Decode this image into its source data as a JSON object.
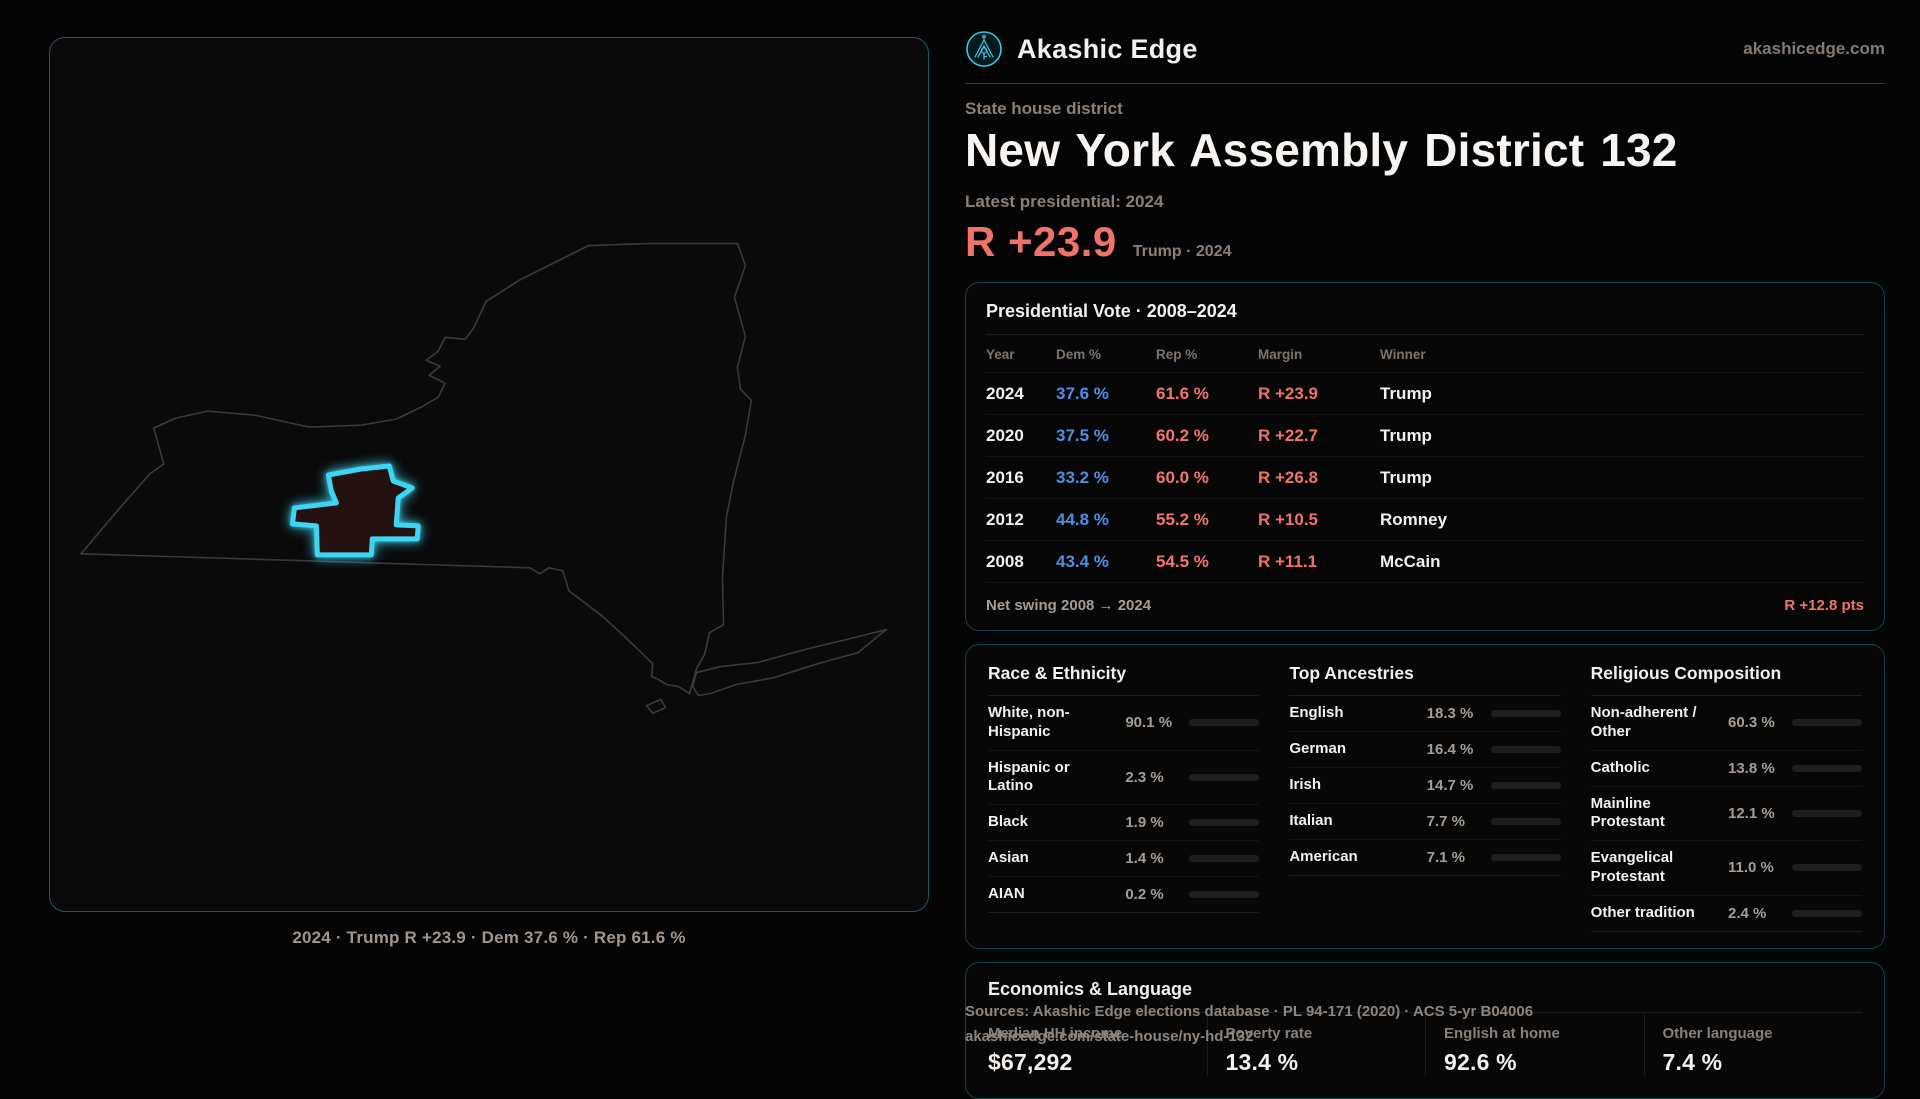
{
  "brand": {
    "name": "Akashic Edge",
    "domain": "akashicedge.com"
  },
  "page": {
    "eyebrow": "State house district",
    "title": "New York Assembly District 132",
    "latest_label": "Latest presidential: 2024",
    "headline_margin": "R +23.9",
    "headline_context": "Trump · 2024"
  },
  "map": {
    "caption": "2024 · Trump R +23.9 · Dem 37.6 % · Rep 61.6 %",
    "district_color": "#3fd4f2",
    "state_outline_color": "#3a3a3a"
  },
  "presidential": {
    "title": "Presidential Vote · 2008–2024",
    "columns": [
      "Year",
      "Dem %",
      "Rep %",
      "Margin",
      "Winner"
    ],
    "rows": [
      {
        "year": "2024",
        "dem": "37.6 %",
        "rep": "61.6 %",
        "margin": "R +23.9",
        "winner": "Trump"
      },
      {
        "year": "2020",
        "dem": "37.5 %",
        "rep": "60.2 %",
        "margin": "R +22.7",
        "winner": "Trump"
      },
      {
        "year": "2016",
        "dem": "33.2 %",
        "rep": "60.0 %",
        "margin": "R +26.8",
        "winner": "Trump"
      },
      {
        "year": "2012",
        "dem": "44.8 %",
        "rep": "55.2 %",
        "margin": "R +10.5",
        "winner": "Romney"
      },
      {
        "year": "2008",
        "dem": "43.4 %",
        "rep": "54.5 %",
        "margin": "R +11.1",
        "winner": "McCain"
      }
    ],
    "net_swing_label": "Net swing 2008 → 2024",
    "net_swing_value": "R +12.8 pts"
  },
  "demographics": {
    "race": {
      "title": "Race & Ethnicity",
      "rows": [
        {
          "label": "White, non-Hispanic",
          "value": "90.1 %",
          "pct": 90.1,
          "color": "#8b9cb6"
        },
        {
          "label": "Hispanic or Latino",
          "value": "2.3 %",
          "pct": 2.3,
          "color": "#e2942f"
        },
        {
          "label": "Black",
          "value": "1.9 %",
          "pct": 1.9,
          "color": "#8678e8"
        },
        {
          "label": "Asian",
          "value": "1.4 %",
          "pct": 1.4,
          "color": "#2fc98f"
        },
        {
          "label": "AIAN",
          "value": "0.2 %",
          "pct": 0.2,
          "color": "#cf6a2f"
        }
      ]
    },
    "ancestries": {
      "title": "Top Ancestries",
      "rows": [
        {
          "label": "English",
          "value": "18.3 %",
          "pct": 18.3,
          "color": "#7b91ad"
        },
        {
          "label": "German",
          "value": "16.4 %",
          "pct": 16.4,
          "color": "#7b91ad"
        },
        {
          "label": "Irish",
          "value": "14.7 %",
          "pct": 14.7,
          "color": "#7b91ad"
        },
        {
          "label": "Italian",
          "value": "7.7 %",
          "pct": 7.7,
          "color": "#7b91ad"
        },
        {
          "label": "American",
          "value": "7.1 %",
          "pct": 7.1,
          "color": "#7b91ad"
        }
      ]
    },
    "religion": {
      "title": "Religious Composition",
      "rows": [
        {
          "label": "Non-adherent / Other",
          "value": "60.3 %",
          "pct": 60.3,
          "color": "#707684"
        },
        {
          "label": "Catholic",
          "value": "13.8 %",
          "pct": 13.8,
          "color": "#e7b93c"
        },
        {
          "label": "Mainline Protestant",
          "value": "12.1 %",
          "pct": 12.1,
          "color": "#4f8fe8"
        },
        {
          "label": "Evangelical Protestant",
          "value": "11.0 %",
          "pct": 11.0,
          "color": "#ea6a62"
        },
        {
          "label": "Other tradition",
          "value": "2.4 %",
          "pct": 2.4,
          "color": "#c9ccd1"
        }
      ]
    }
  },
  "economics": {
    "title": "Economics & Language",
    "stats": [
      {
        "label": "Median HH income",
        "value": "$67,292"
      },
      {
        "label": "Poverty rate",
        "value": "13.4 %"
      },
      {
        "label": "English at home",
        "value": "92.6 %"
      },
      {
        "label": "Other language",
        "value": "7.4 %"
      }
    ]
  },
  "footer": {
    "line1": "Sources: Akashic Edge elections database · PL 94-171 (2020) · ACS 5-yr B04006",
    "line2": "akashicedge.com/state-house/ny-hd-132"
  }
}
